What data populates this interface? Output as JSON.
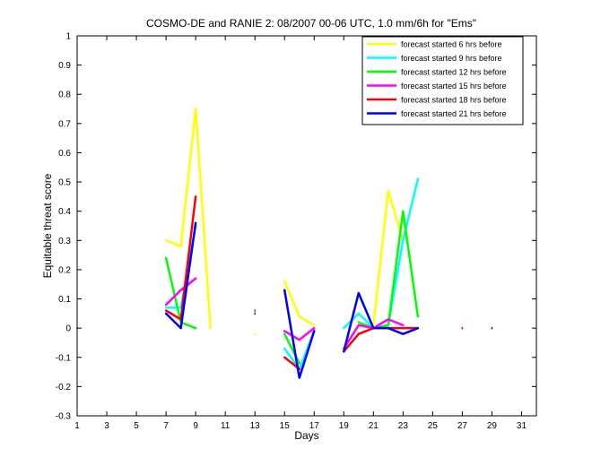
{
  "chart_data": {
    "type": "line",
    "title": "COSMO-DE and RANIE 2: 08/2007 00-06 UTC, 1.0 mm/6h for \"Ems\"",
    "xlabel": "Days",
    "ylabel": "Equitable threat score",
    "xlim": [
      1,
      32
    ],
    "ylim": [
      -0.3,
      1
    ],
    "xticks": [
      "1",
      "3",
      "5",
      "7",
      "9",
      "11",
      "13",
      "15",
      "17",
      "19",
      "21",
      "23",
      "25",
      "27",
      "29",
      "31"
    ],
    "yticks": [
      "-0.3",
      "-0.2",
      "-0.1",
      "0",
      "0.1",
      "0.2",
      "0.3",
      "0.4",
      "0.5",
      "0.6",
      "0.7",
      "0.8",
      "0.9",
      "1"
    ],
    "grid": false,
    "legend_position": "top-right",
    "series": [
      {
        "name": "forecast started 6 hrs before",
        "color": "#ffff00",
        "x": [
          1,
          2,
          3,
          4,
          5,
          6,
          7,
          8,
          9,
          10,
          11,
          12,
          13,
          14,
          15,
          16,
          17,
          18,
          19,
          20,
          21,
          22,
          23,
          24,
          25,
          26,
          27,
          28,
          29,
          30,
          31
        ],
        "values": [
          null,
          null,
          null,
          null,
          null,
          null,
          0.3,
          0.28,
          0.75,
          0,
          null,
          null,
          -0.02,
          null,
          0.16,
          0.04,
          0.01,
          null,
          null,
          0.01,
          0.01,
          0.47,
          0.3,
          null,
          null,
          null,
          null,
          null,
          null,
          null,
          null
        ]
      },
      {
        "name": "forecast started 9 hrs before",
        "color": "#00ffff",
        "x": [
          1,
          2,
          3,
          4,
          5,
          6,
          7,
          8,
          9,
          10,
          11,
          12,
          13,
          14,
          15,
          16,
          17,
          18,
          19,
          20,
          21,
          22,
          23,
          24,
          25,
          26,
          27,
          28,
          29,
          30,
          31
        ],
        "values": [
          null,
          null,
          null,
          null,
          null,
          null,
          0.07,
          0.07,
          0.35,
          null,
          null,
          null,
          null,
          null,
          -0.07,
          -0.14,
          -0.01,
          null,
          0,
          0.05,
          0,
          0.01,
          0.3,
          0.51,
          null,
          null,
          0,
          null,
          null,
          null,
          null
        ]
      },
      {
        "name": "forecast started 12 hrs before",
        "color": "#00ff00",
        "x": [
          1,
          2,
          3,
          4,
          5,
          6,
          7,
          8,
          9,
          10,
          11,
          12,
          13,
          14,
          15,
          16,
          17,
          18,
          19,
          20,
          21,
          22,
          23,
          24,
          25,
          26,
          27,
          28,
          29,
          30,
          31
        ],
        "values": [
          null,
          null,
          null,
          null,
          null,
          null,
          0.24,
          0.02,
          0,
          null,
          null,
          null,
          null,
          null,
          -0.02,
          -0.12,
          null,
          null,
          null,
          0.02,
          0,
          0.01,
          0.4,
          0.04,
          null,
          null,
          null,
          null,
          null,
          null,
          null
        ]
      },
      {
        "name": "forecast started 15 hrs before",
        "color": "#ff00ff",
        "x": [
          1,
          2,
          3,
          4,
          5,
          6,
          7,
          8,
          9,
          10,
          11,
          12,
          13,
          14,
          15,
          16,
          17,
          18,
          19,
          20,
          21,
          22,
          23,
          24,
          25,
          26,
          27,
          28,
          29,
          30,
          31
        ],
        "values": [
          null,
          null,
          null,
          null,
          null,
          null,
          0.08,
          0.13,
          0.17,
          null,
          null,
          null,
          null,
          null,
          -0.01,
          -0.04,
          0,
          null,
          -0.07,
          0.01,
          0,
          0.03,
          0.01,
          null,
          null,
          null,
          null,
          null,
          null,
          null,
          null
        ]
      },
      {
        "name": "forecast started 18 hrs before",
        "color": "#ff0000",
        "x": [
          1,
          2,
          3,
          4,
          5,
          6,
          7,
          8,
          9,
          10,
          11,
          12,
          13,
          14,
          15,
          16,
          17,
          18,
          19,
          20,
          21,
          22,
          23,
          24,
          25,
          26,
          27,
          28,
          29,
          30,
          31
        ],
        "values": [
          null,
          null,
          null,
          null,
          null,
          null,
          0.06,
          0.03,
          0.45,
          null,
          null,
          null,
          0.06,
          null,
          -0.1,
          -0.14,
          null,
          null,
          -0.08,
          -0.02,
          0,
          0,
          0,
          0,
          null,
          null,
          0,
          null,
          null,
          null,
          null
        ]
      },
      {
        "name": "forecast started 21 hrs before",
        "color": "#0000ff",
        "x": [
          1,
          2,
          3,
          4,
          5,
          6,
          7,
          8,
          9,
          10,
          11,
          12,
          13,
          14,
          15,
          16,
          17,
          18,
          19,
          20,
          21,
          22,
          23,
          24,
          25,
          26,
          27,
          28,
          29,
          30,
          31
        ],
        "values": [
          0,
          null,
          null,
          null,
          null,
          null,
          0.05,
          0,
          0.36,
          null,
          null,
          null,
          0.05,
          null,
          0.13,
          -0.17,
          -0.01,
          null,
          -0.08,
          0.12,
          0,
          0,
          -0.02,
          0,
          null,
          null,
          null,
          null,
          0,
          null,
          null
        ]
      }
    ]
  }
}
